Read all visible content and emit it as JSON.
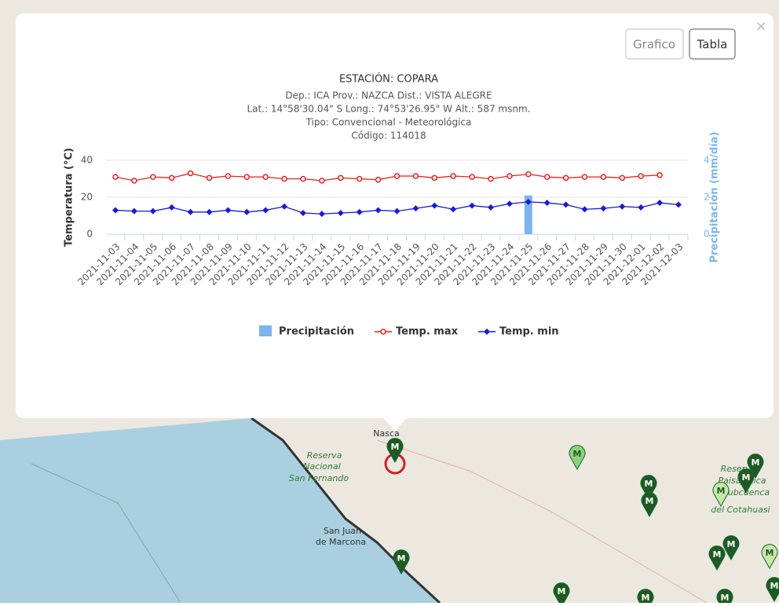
{
  "buttons": [
    "Grafico",
    "Tabla"
  ],
  "close": "×",
  "map": {
    "marker_label": "M",
    "labels": [
      "Nasca",
      "Reserva",
      "Nacional",
      "San Fernando",
      "San Juan",
      "de Marcona",
      "Reserva",
      "Paisajística",
      "Subcuenca",
      "del Cotahuasi"
    ]
  },
  "chart_data": {
    "type": "line",
    "title": "ESTACIÓN: COPARA",
    "subtitle": [
      "Dep.: ICA Prov.: NAZCA Dist.: VISTA ALEGRE",
      "Lat.: 14°58'30.04\" S Long.: 74°53'26.95\" W Alt.: 587 msnm.",
      "Tipo: Convencional - Meteorológica",
      "Código: 114018"
    ],
    "y_label": "Temperatura (°C)",
    "y2_label": "Precipitación (mm/día)",
    "categories": [
      "2021-11-03",
      "2021-11-04",
      "2021-11-05",
      "2021-11-06",
      "2021-11-07",
      "2021-11-08",
      "2021-11-09",
      "2021-11-10",
      "2021-11-11",
      "2021-11-12",
      "2021-11-13",
      "2021-11-14",
      "2021-11-15",
      "2021-11-16",
      "2021-11-17",
      "2021-11-18",
      "2021-11-19",
      "2021-11-20",
      "2021-11-21",
      "2021-11-22",
      "2021-11-23",
      "2021-11-24",
      "2021-11-25",
      "2021-11-26",
      "2021-11-27",
      "2021-11-28",
      "2021-11-29",
      "2021-11-30",
      "2021-12-01",
      "2021-12-02",
      "2021-12-03"
    ],
    "ylim": [
      0,
      40
    ],
    "yticks": [
      0,
      20,
      40
    ],
    "y2lim": [
      0,
      4
    ],
    "y2ticks": [
      0,
      2,
      4
    ],
    "grid": true,
    "series": [
      {
        "name": "Precipitación",
        "type": "column",
        "axis": "y2",
        "color": "#7cb5ec",
        "values": [
          0,
          0,
          0,
          0,
          0,
          0,
          0,
          0,
          0,
          0,
          0,
          0,
          0,
          0,
          0,
          0,
          0,
          0,
          0,
          0,
          0,
          0,
          2.1,
          0,
          0,
          0,
          0,
          0,
          0,
          0,
          0
        ]
      },
      {
        "name": "Temp. max",
        "type": "line",
        "marker": "circle",
        "color": "#e8211d",
        "values": [
          31,
          29,
          31,
          30.5,
          33,
          30.5,
          31.5,
          31,
          31,
          30,
          30,
          29,
          30.5,
          30,
          29.5,
          31.5,
          31.5,
          30.5,
          31.5,
          31,
          30,
          31.5,
          32.5,
          31,
          30.5,
          31,
          31,
          30.5,
          31.5,
          32,
          null
        ]
      },
      {
        "name": "Temp. min",
        "type": "line",
        "marker": "diamond",
        "color": "#1a1adb",
        "values": [
          13,
          12.5,
          12.5,
          14.5,
          12,
          12,
          13,
          12,
          13,
          15,
          11.5,
          11,
          11.5,
          12,
          13,
          12.5,
          14,
          15.5,
          13.5,
          15.5,
          14.5,
          16.5,
          17.5,
          17,
          16,
          13.5,
          14,
          15,
          14.5,
          17,
          16
        ]
      }
    ]
  }
}
